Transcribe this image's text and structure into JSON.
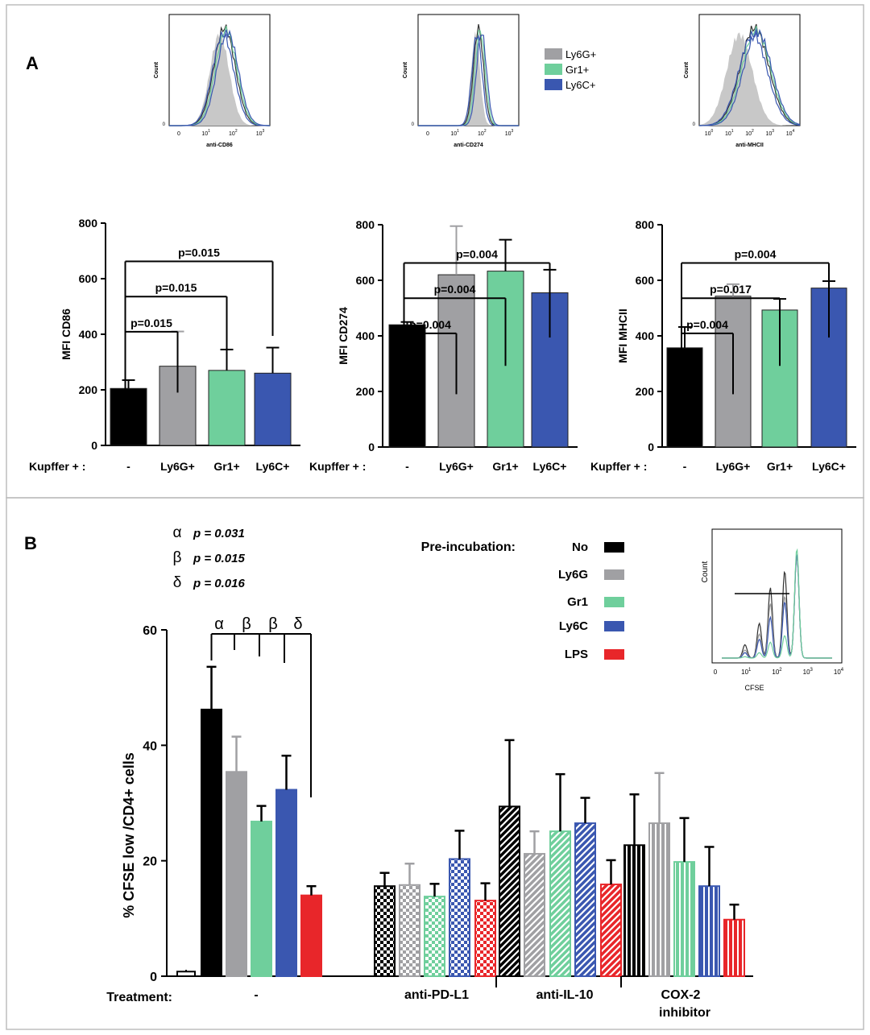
{
  "colors": {
    "no": "#000000",
    "ly6g": "#a0a0a3",
    "gr1": "#6fcf9c",
    "ly6c": "#3a57b0",
    "lps": "#e8262a",
    "hist_fill": "#c8c8c8",
    "axis": "#000000"
  },
  "panel_a": {
    "label": "A",
    "legend": [
      "Ly6G+",
      "Gr1+",
      "Ly6C+"
    ],
    "histograms": [
      {
        "ylabel": "Count",
        "xlabel": "anti-CD86",
        "ticks": [
          "0",
          "10",
          "10",
          "10"
        ],
        "exps": [
          "",
          "1",
          "2",
          "3"
        ]
      },
      {
        "ylabel": "Count",
        "xlabel": "anti-CD274",
        "ticks": [
          "0",
          "10",
          "10",
          "10"
        ],
        "exps": [
          "",
          "1",
          "2",
          "3"
        ]
      },
      {
        "ylabel": "Count",
        "xlabel": "anti-MHCII",
        "ticks": [
          "10",
          "10",
          "10",
          "10",
          "10"
        ],
        "exps": [
          "0",
          "1",
          "2",
          "3",
          "4"
        ]
      }
    ],
    "xprefix": "Kupffer + :",
    "categories": [
      "-",
      "Ly6G+",
      "Gr1+",
      "Ly6C+"
    ]
  },
  "panel_b": {
    "label": "B",
    "stats": [
      {
        "symbol": "α",
        "text": "p = 0.031"
      },
      {
        "symbol": "β",
        "text": "p = 0.015"
      },
      {
        "symbol": "δ",
        "text": "p = 0.016"
      }
    ],
    "bracket_symbols": [
      "α",
      "β",
      "β",
      "δ"
    ],
    "preincubation_title": "Pre-incubation:",
    "legend": [
      "No",
      "Ly6G",
      "Gr1",
      "Ly6C",
      "LPS"
    ],
    "inset": {
      "ylabel": "Count",
      "xlabel": "CFSE",
      "ticks": [
        "0",
        "10",
        "10",
        "10",
        "10"
      ],
      "exps": [
        "",
        "1",
        "2",
        "3",
        "4"
      ]
    },
    "treatment_label": "Treatment:",
    "treatment_groups": [
      "-",
      "anti-PD-L1",
      "anti-IL-10",
      "COX-2",
      "inhibitor"
    ]
  },
  "chart_data": [
    {
      "type": "bar",
      "ylabel": "MFI CD86",
      "ylim": [
        0,
        800
      ],
      "yticks": [
        "0",
        "200",
        "400",
        "600",
        "800"
      ],
      "categories": [
        "-",
        "Ly6G+",
        "Gr1+",
        "Ly6C+"
      ],
      "values": [
        205,
        285,
        270,
        260
      ],
      "errors": [
        30,
        125,
        75,
        92
      ],
      "comparisons": [
        {
          "label": "p=0.015",
          "from": "-",
          "to": "Ly6G+"
        },
        {
          "label": "p=0.015",
          "from": "-",
          "to": "Gr1+"
        },
        {
          "label": "p=0.015",
          "from": "-",
          "to": "Ly6C+"
        }
      ]
    },
    {
      "type": "bar",
      "ylabel": "MFI CD274",
      "ylim": [
        0,
        800
      ],
      "yticks": [
        "0",
        "200",
        "400",
        "600",
        "800"
      ],
      "categories": [
        "-",
        "Ly6G+",
        "Gr1+",
        "Ly6C+"
      ],
      "values": [
        440,
        620,
        633,
        555
      ],
      "errors": [
        10,
        175,
        113,
        83
      ],
      "comparisons": [
        {
          "label": "p=0.004",
          "from": "-",
          "to": "Ly6G+"
        },
        {
          "label": "p=0.004",
          "from": "-",
          "to": "Gr1+"
        },
        {
          "label": "p=0.004",
          "from": "-",
          "to": "Ly6C+"
        }
      ]
    },
    {
      "type": "bar",
      "ylabel": "MFI MHCII",
      "ylim": [
        0,
        800
      ],
      "yticks": [
        "0",
        "200",
        "400",
        "600",
        "800"
      ],
      "categories": [
        "-",
        "Ly6G+",
        "Gr1+",
        "Ly6C+"
      ],
      "values": [
        357,
        543,
        493,
        572
      ],
      "errors": [
        75,
        43,
        40,
        25
      ],
      "comparisons": [
        {
          "label": "p=0.004",
          "from": "-",
          "to": "Ly6G+"
        },
        {
          "label": "p=0.017",
          "from": "-",
          "to": "Gr1+"
        },
        {
          "label": "p=0.004",
          "from": "-",
          "to": "Ly6C+"
        }
      ]
    },
    {
      "type": "bar",
      "ylabel": "% CFSE low /CD4+ cells",
      "ylim": [
        0,
        60
      ],
      "yticks": [
        "0",
        "20",
        "40",
        "60"
      ],
      "categories": [
        "-",
        "anti-PD-L1",
        "anti-IL-10",
        "COX-2 inhibitor"
      ],
      "baseline": {
        "value": 0.8,
        "error": 0.3
      },
      "series": [
        {
          "name": "No",
          "values": [
            46.2,
            15.6,
            29.4,
            22.7
          ],
          "errors": [
            7.4,
            2.3,
            11.5,
            8.8
          ]
        },
        {
          "name": "Ly6G",
          "values": [
            35.4,
            15.8,
            21.2,
            26.5
          ],
          "errors": [
            6.1,
            3.7,
            3.9,
            8.7
          ]
        },
        {
          "name": "Gr1",
          "values": [
            26.8,
            13.8,
            25.1,
            19.8
          ],
          "errors": [
            2.7,
            2.2,
            9.9,
            7.6
          ]
        },
        {
          "name": "Ly6C",
          "values": [
            32.3,
            20.3,
            26.5,
            15.6
          ],
          "errors": [
            5.9,
            4.9,
            4.4,
            6.8
          ]
        },
        {
          "name": "LPS",
          "values": [
            14.0,
            13.1,
            15.9,
            9.8
          ],
          "errors": [
            1.6,
            3.0,
            4.2,
            2.6
          ]
        }
      ]
    }
  ]
}
